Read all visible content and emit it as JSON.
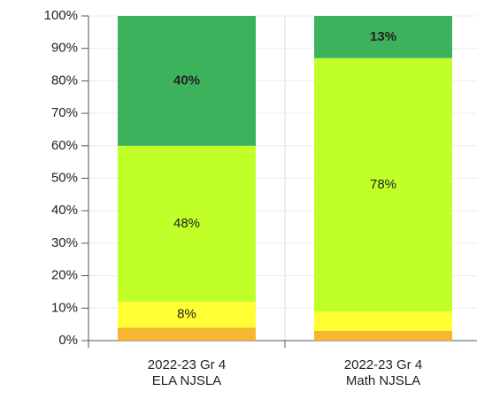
{
  "chart_data": {
    "type": "stacked_bar",
    "categories": [
      [
        "2022-23 Gr 4",
        "ELA NJSLA"
      ],
      [
        "2022-23 Gr 4",
        "Math NJSLA"
      ]
    ],
    "series": [
      {
        "color": "#f5b731",
        "label_color": "#333333",
        "values": [
          4,
          3
        ],
        "value_labels": [
          null,
          null
        ]
      },
      {
        "color": "#ffff33",
        "label_color": "#333333",
        "values": [
          8,
          6
        ],
        "value_labels": [
          "8%",
          null
        ]
      },
      {
        "color": "#c1ff29",
        "label_color": "#333333",
        "values": [
          48,
          78
        ],
        "value_labels": [
          "48%",
          "78%"
        ]
      },
      {
        "color": "#3cb25c",
        "label_color": "#ffffff",
        "values": [
          40,
          13
        ],
        "value_labels": [
          "40%",
          "13%"
        ]
      }
    ],
    "ylim": [
      0,
      100
    ],
    "yticks": [
      {
        "value": 0,
        "label": "0%"
      },
      {
        "value": 10,
        "label": "10%"
      },
      {
        "value": 20,
        "label": "20%"
      },
      {
        "value": 30,
        "label": "30%"
      },
      {
        "value": 40,
        "label": "40%"
      },
      {
        "value": 50,
        "label": "50%"
      },
      {
        "value": 60,
        "label": "60%"
      },
      {
        "value": 70,
        "label": "70%"
      },
      {
        "value": 80,
        "label": "80%"
      },
      {
        "value": 90,
        "label": "90%"
      },
      {
        "value": 100,
        "label": "100%"
      }
    ],
    "grid": true
  }
}
